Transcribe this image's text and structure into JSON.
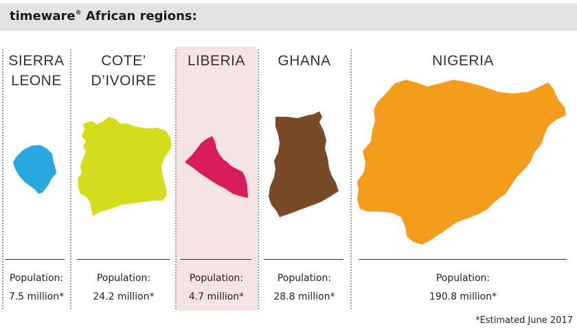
{
  "header": {
    "brand": "timeware",
    "trademark": "®",
    "rest": " African regions:"
  },
  "colors": {
    "header_bg": "#e3e3e3",
    "highlight_bg": "#f6e3e4",
    "sierra_leone": "#29a8e0",
    "cote_divoire": "#d4de1c",
    "liberia": "#d81c5c",
    "ghana": "#7a4a26",
    "nigeria": "#f59c1f"
  },
  "population_label": "Population:",
  "regions": [
    {
      "name_line1": "SIERRA",
      "name_line2": "LEONE",
      "population": "7.5 million*",
      "icon": "sierra-leone-map-icon"
    },
    {
      "name_line1": "COTE’",
      "name_line2": "D’IVOIRE",
      "population": "24.2 million*",
      "icon": "cote-divoire-map-icon"
    },
    {
      "name_line1": "LIBERIA",
      "name_line2": "",
      "population": "4.7 million*",
      "icon": "liberia-map-icon",
      "highlighted": true
    },
    {
      "name_line1": "GHANA",
      "name_line2": "",
      "population": "28.8 million*",
      "icon": "ghana-map-icon"
    },
    {
      "name_line1": "NIGERIA",
      "name_line2": "",
      "population": "190.8 million*",
      "icon": "nigeria-map-icon"
    }
  ],
  "footnote": "*Estimated June 2017"
}
